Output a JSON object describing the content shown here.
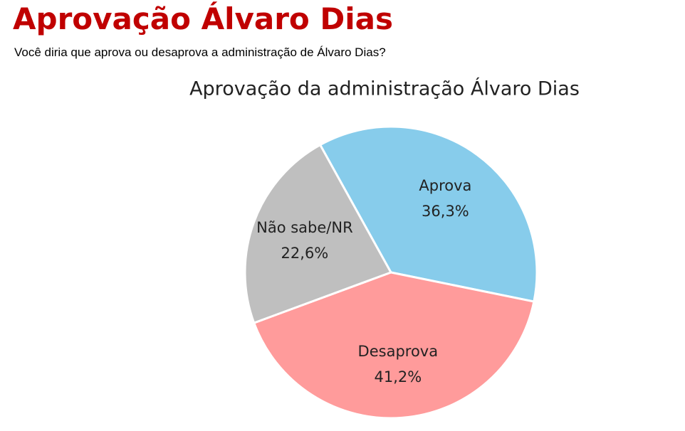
{
  "header": {
    "title": "Aprovação Álvaro Dias",
    "subtitle": "Você diria que aprova ou desaprova a administração de Álvaro Dias?"
  },
  "chart_data": {
    "type": "pie",
    "title": "Aprovação da administração Álvaro Dias",
    "categories": [
      "Aprova",
      "Desaprova",
      "Não sabe/NR"
    ],
    "values": [
      36.3,
      41.2,
      22.6
    ],
    "value_labels": [
      "36,3%",
      "41,2%",
      "22,6%"
    ],
    "colors": [
      "#87cceb",
      "#ff9b9b",
      "#bfbfbf"
    ]
  }
}
